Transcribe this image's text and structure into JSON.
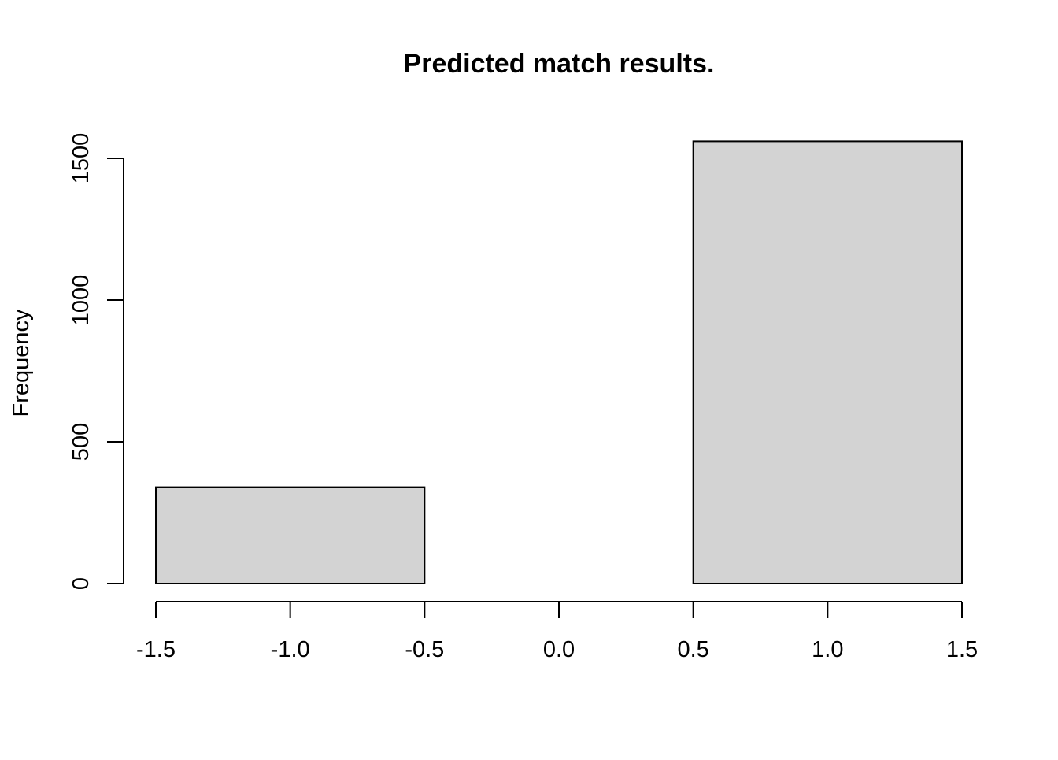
{
  "chart_data": {
    "type": "bar",
    "title": "Predicted match results.",
    "xlabel": "",
    "ylabel": "Frequency",
    "bins": [
      {
        "x0": -1.5,
        "x1": -0.5,
        "count": 340
      },
      {
        "x0": -0.5,
        "x1": 0.5,
        "count": 0
      },
      {
        "x0": 0.5,
        "x1": 1.5,
        "count": 1560
      }
    ],
    "xlim": [
      -1.5,
      1.5
    ],
    "ylim": [
      0,
      1500
    ],
    "x_ticks": [
      -1.5,
      -1.0,
      -0.5,
      0.0,
      0.5,
      1.0,
      1.5
    ],
    "x_tick_labels": [
      "-1.5",
      "-1.0",
      "-0.5",
      "0.0",
      "0.5",
      "1.0",
      "1.5"
    ],
    "y_ticks": [
      0,
      500,
      1000,
      1500
    ],
    "y_tick_labels": [
      "0",
      "500",
      "1000",
      "1500"
    ],
    "grid": false,
    "bar_fill": "#d3d3d3",
    "bar_stroke": "#000000"
  }
}
